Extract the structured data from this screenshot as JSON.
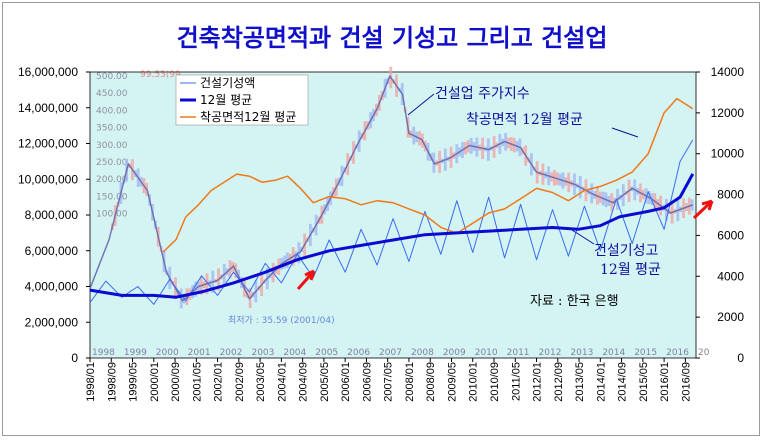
{
  "chart_data": {
    "type": "line",
    "title": "건축착공면적과 건설 기성고 그리고 건설업",
    "legend": {
      "placement": "top-left",
      "entries": [
        "건설기성액",
        "12월 평균",
        "착공면적12월 평균"
      ]
    },
    "annotations": {
      "stock_index": "건설업 주가지수",
      "start_area_avg": "착공면적 12월 평균",
      "construction_avg_1": "건설기성고",
      "construction_avg_2": "12월 평균",
      "source": "자료 : 한국 은행"
    },
    "left_axis": {
      "ticks": [
        "0",
        "2,000,000",
        "4,000,000",
        "6,000,000",
        "8,000,000",
        "10,000,000",
        "12,000,000",
        "14,000,000",
        "16,000,000"
      ],
      "ylim": [
        0,
        16000000
      ]
    },
    "right_axis": {
      "ticks": [
        "0",
        "2000",
        "4000",
        "6000",
        "8000",
        "10000",
        "12000",
        "14000"
      ],
      "ylim": [
        0,
        14000
      ]
    },
    "x_ticks": [
      "1998/01",
      "1998/09",
      "1999/05",
      "2000/01",
      "2000/09",
      "2001/05",
      "2002/01",
      "2002/09",
      "2003/05",
      "2004/01",
      "2004/09",
      "2005/05",
      "2006/01",
      "2006/09",
      "2007/05",
      "2008/01",
      "2008/09",
      "2009/05",
      "2010/01",
      "2010/09",
      "2011/05",
      "2012/01",
      "2012/09",
      "2013/05",
      "2014/01",
      "2014/09",
      "2015/05",
      "2016/01",
      "2016/09"
    ],
    "series": [
      {
        "name": "건설기성액",
        "color": "#3a6cf0",
        "axis": "left",
        "x": [
          1998.0,
          1998.5,
          1999.0,
          1999.5,
          2000.0,
          2000.5,
          2001.0,
          2001.5,
          2002.0,
          2002.5,
          2003.0,
          2003.5,
          2004.0,
          2004.5,
          2005.0,
          2005.5,
          2006.0,
          2006.5,
          2007.0,
          2007.5,
          2008.0,
          2008.5,
          2009.0,
          2009.5,
          2010.0,
          2010.5,
          2011.0,
          2011.5,
          2012.0,
          2012.5,
          2013.0,
          2013.5,
          2014.0,
          2014.5,
          2015.0,
          2015.5,
          2016.0,
          2016.5,
          2016.9
        ],
        "values": [
          3100000,
          4300000,
          3400000,
          4000000,
          3000000,
          4400000,
          3200000,
          4600000,
          3500000,
          4800000,
          3700000,
          5300000,
          4200000,
          5800000,
          4500000,
          6600000,
          4800000,
          7200000,
          5200000,
          7800000,
          5400000,
          8200000,
          5800000,
          8800000,
          5900000,
          9000000,
          5600000,
          8600000,
          5500000,
          8300000,
          5700000,
          8500000,
          6000000,
          8900000,
          6400000,
          9300000,
          7200000,
          11000000,
          12200000
        ]
      },
      {
        "name": "12월 평균",
        "color": "#0a0ad0",
        "axis": "left",
        "x": [
          1998.0,
          1999.0,
          2000.0,
          2000.7,
          2001.5,
          2002.5,
          2003.5,
          2004.5,
          2005.5,
          2006.5,
          2007.5,
          2008.5,
          2009.5,
          2010.5,
          2011.5,
          2012.5,
          2013.3,
          2014.0,
          2014.6,
          2015.5,
          2016.0,
          2016.5,
          2016.9
        ],
        "values": [
          3800000,
          3500000,
          3500000,
          3400000,
          3700000,
          4200000,
          4800000,
          5500000,
          6000000,
          6300000,
          6600000,
          6900000,
          7000000,
          7100000,
          7200000,
          7300000,
          7200000,
          7400000,
          7900000,
          8200000,
          8400000,
          9000000,
          10300000
        ]
      },
      {
        "name": "착공면적12월 평균",
        "color": "#f07818",
        "axis": "right",
        "x": [
          2000.3,
          2000.7,
          2001.0,
          2001.4,
          2001.8,
          2002.2,
          2002.6,
          2003.0,
          2003.4,
          2003.8,
          2004.2,
          2004.6,
          2005.0,
          2005.5,
          2006.0,
          2006.5,
          2007.0,
          2007.5,
          2008.0,
          2008.5,
          2009.0,
          2009.5,
          2010.0,
          2010.5,
          2011.0,
          2011.5,
          2012.0,
          2012.5,
          2013.0,
          2013.5,
          2014.0,
          2014.5,
          2015.0,
          2015.5,
          2016.0,
          2016.4,
          2016.9
        ],
        "values": [
          5200,
          5800,
          6900,
          7500,
          8200,
          8600,
          9000,
          8900,
          8600,
          8700,
          8900,
          8300,
          7600,
          7900,
          7800,
          7500,
          7700,
          7600,
          7300,
          7000,
          6400,
          6100,
          6600,
          7100,
          7300,
          7800,
          8300,
          8100,
          7700,
          8200,
          8400,
          8700,
          9100,
          10000,
          12000,
          12700,
          12200
        ]
      },
      {
        "name": "건설업 주가지수",
        "color": "#6868a8",
        "axis": "right",
        "x": [
          1998.0,
          1998.6,
          1999.2,
          1999.8,
          2000.4,
          2000.9,
          2001.4,
          2002.0,
          2002.5,
          2003.0,
          2003.5,
          2004.0,
          2004.6,
          2005.2,
          2005.8,
          2006.4,
          2007.0,
          2007.4,
          2007.8,
          2008.0,
          2008.4,
          2008.8,
          2009.3,
          2009.9,
          2010.5,
          2011.0,
          2011.5,
          2012.0,
          2012.6,
          2013.2,
          2013.8,
          2014.4,
          2015.0,
          2015.6,
          2016.2,
          2016.9
        ],
        "values": [
          3400,
          5800,
          9500,
          8200,
          4200,
          2800,
          3500,
          3800,
          4500,
          2900,
          3800,
          4600,
          5200,
          6800,
          8600,
          10500,
          12200,
          13800,
          12900,
          11000,
          10700,
          9500,
          9800,
          10400,
          10200,
          10600,
          10300,
          9100,
          8800,
          8500,
          8000,
          7600,
          8300,
          7800,
          7100,
          7500
        ]
      }
    ],
    "background_reference_labels": {
      "left_scale": [
        "500.00",
        "450.00",
        "400.00",
        "350.00",
        "300.00",
        "250.00",
        "200.00",
        "150.00",
        "100.00"
      ],
      "top_red_label": "99.53(99",
      "low_label": "최저가 : 35.59 (2001/04)",
      "bottom_years": [
        "1998",
        "1999",
        "2000",
        "2001",
        "2002",
        "2003",
        "2004",
        "2005",
        "2006",
        "2007",
        "2008",
        "2009",
        "2010",
        "2011",
        "2012",
        "2013",
        "2014",
        "2015",
        "2016",
        "20"
      ]
    },
    "colors": {
      "plot_background": "#d4f4f4",
      "title": "#1010c8",
      "arrow": "#f01010"
    }
  }
}
